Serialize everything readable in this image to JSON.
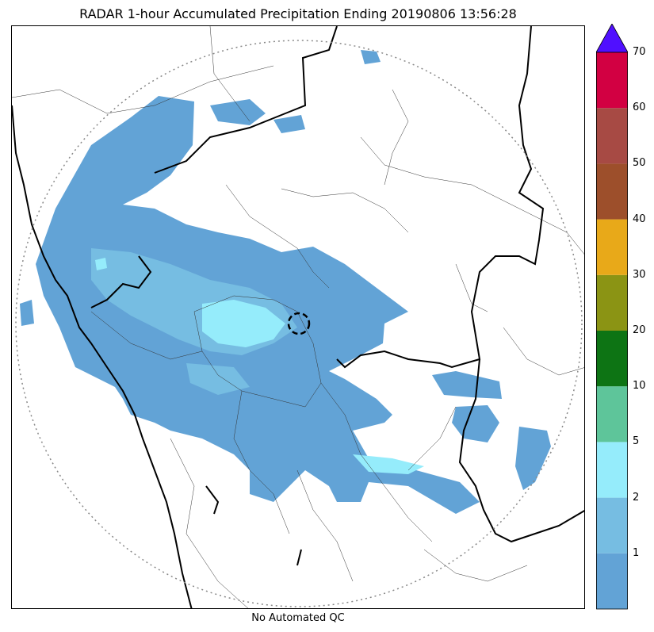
{
  "title": "RADAR 1-hour Accumulated Precipitation Ending 20190806 13:56:28",
  "caption": "No Automated QC",
  "colorbar": {
    "labels": [
      "1",
      "2",
      "5",
      "10",
      "20",
      "30",
      "40",
      "50",
      "60",
      "70"
    ],
    "colors": [
      "#62a3d6",
      "#76bde2",
      "#95ecfb",
      "#5ec59a",
      "#0d7414",
      "#8b9414",
      "#e8a919",
      "#9d4f2b",
      "#a74a44",
      "#d20042"
    ],
    "extend_color": "#5010ff"
  },
  "map": {
    "precip_colors": {
      "light": "#62a3d6",
      "moderate": "#76bde2",
      "heavy": "#95ecfb"
    },
    "range_ring": "dotted",
    "radar_marker": "dashed-circle"
  }
}
